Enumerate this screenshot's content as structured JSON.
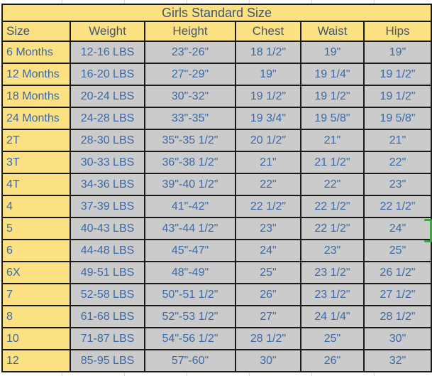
{
  "colors": {
    "canvas_bg": "#ffffff",
    "header_bg": "#fce183",
    "cell_bg": "#cbcbcb",
    "header_text": "#44546a",
    "cell_text": "#3a68a8",
    "border": "#1a1a1a",
    "gridline": "#d9d9d9",
    "selection_marker": "#43a047"
  },
  "table": {
    "title": "Girls Standard Size",
    "headers": [
      "Size",
      "Weight",
      "Height",
      "Chest",
      "Waist",
      "Hips"
    ],
    "rows": [
      [
        "6 Months",
        "12-16 LBS",
        "23\"-26\"",
        "18 1/2\"",
        "19\"",
        "19\""
      ],
      [
        "12 Months",
        "16-20 LBS",
        "27\"-29\"",
        "19\"",
        "19 1/4\"",
        "19 1/2\""
      ],
      [
        "18 Months",
        "20-24 LBS",
        "30\"-32\"",
        "19 1/2\"",
        "19 1/2\"",
        "19 1/2\""
      ],
      [
        "24 Months",
        "24-28 LBS",
        "33\"-35\"",
        "19 3/4\"",
        "19 5/8\"",
        "19 5/8\""
      ],
      [
        "2T",
        "28-30 LBS",
        "35\"-35 1/2\"",
        "20 1/2\"",
        "21\"",
        "21\""
      ],
      [
        "3T",
        "30-33 LBS",
        "36\"-38 1/2\"",
        "21\"",
        "21 1/2\"",
        "22\""
      ],
      [
        "4T",
        "34-36 LBS",
        "39\"-40 1/2\"",
        "22\"",
        "22\"",
        "23\""
      ],
      [
        "4",
        "37-39 LBS",
        "41\"-42\"",
        "22 1/2\"",
        "22 1/2\"",
        "22 1/2\""
      ],
      [
        "5",
        "40-43 LBS",
        "43\"-44 1/2\"",
        "23\"",
        "22 1/2\"",
        "24\""
      ],
      [
        "6",
        "44-48 LBS",
        "45\"-47\"",
        "24\"",
        "23\"",
        "25\""
      ],
      [
        "6X",
        "49-51 LBS",
        "48\"-49\"",
        "25\"",
        "23 1/2\"",
        "26 1/2\""
      ],
      [
        "7",
        "52-58 LBS",
        "50\"-51 1/2\"",
        "26\"",
        "23 1/2\"",
        "27 1/2\""
      ],
      [
        "8",
        "61-68 LBS",
        "52\"-53 1/2\"",
        "27\"",
        "24 1/4\"",
        "28 1/2\""
      ],
      [
        "10",
        "71-87 LBS",
        "54\"-56 1/2\"",
        "28 1/2\"",
        "25\"",
        "30\""
      ],
      [
        "12",
        "85-95 LBS",
        "57\"-60\"",
        "30\"",
        "26\"",
        "32\""
      ]
    ]
  }
}
